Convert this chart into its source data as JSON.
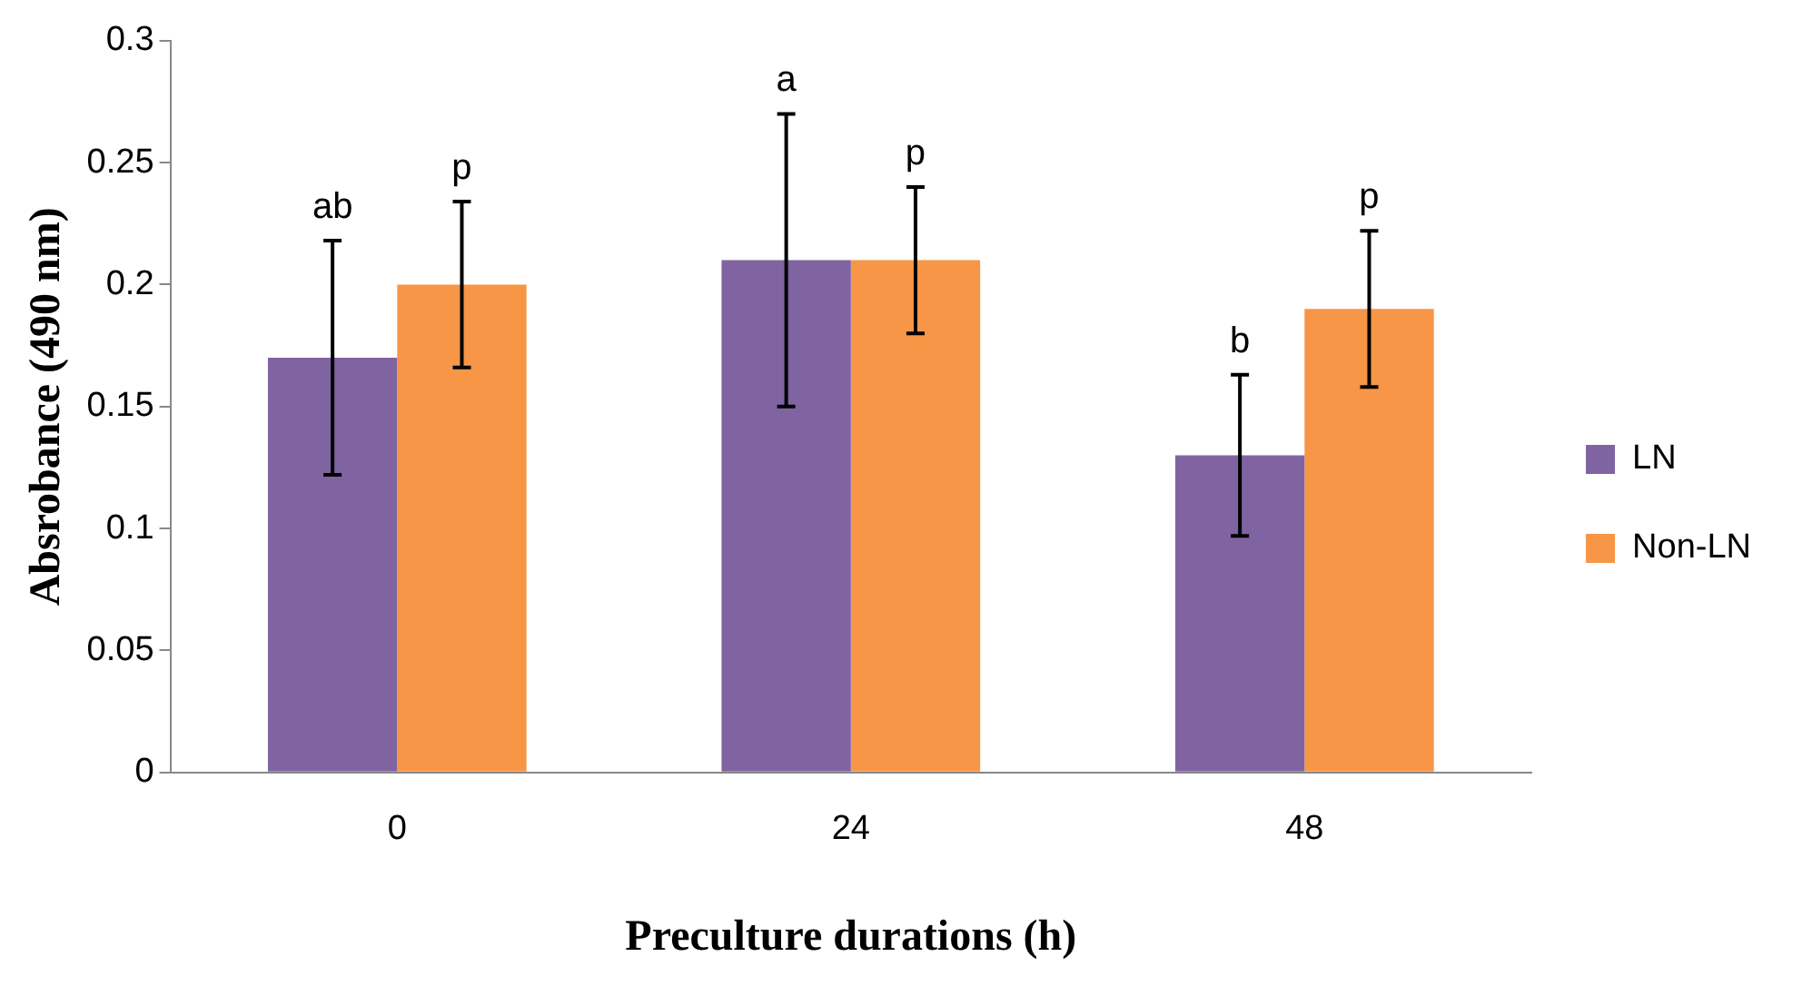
{
  "chart_data": {
    "type": "bar",
    "xlabel": "Preculture durations (h)",
    "ylabel": "Absrobance (490 nm)",
    "categories": [
      "0",
      "24",
      "48"
    ],
    "series": [
      {
        "name": "LN",
        "color": "#8064a2",
        "values": [
          0.17,
          0.21,
          0.13
        ],
        "errors": [
          0.048,
          0.06,
          0.033
        ]
      },
      {
        "name": "Non-LN",
        "color": "#f79646",
        "values": [
          0.2,
          0.21,
          0.19
        ],
        "errors": [
          0.034,
          0.03,
          0.032
        ]
      }
    ],
    "ylim": [
      0,
      0.3
    ],
    "yticks": [
      0,
      0.05,
      0.1,
      0.15,
      0.2,
      0.25,
      0.3
    ],
    "grid": false,
    "legend": "right",
    "annotations": [
      "ab",
      "p",
      "a",
      "p",
      "b",
      "p"
    ]
  }
}
